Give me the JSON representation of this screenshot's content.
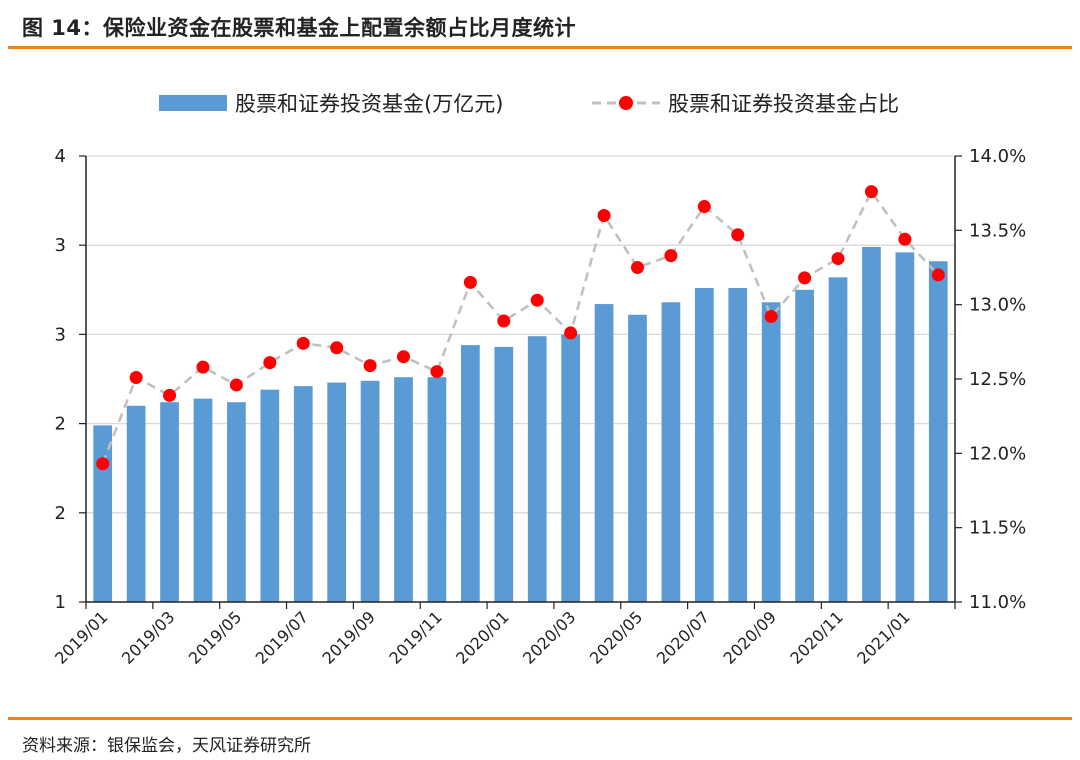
{
  "header": {
    "title": "图 14：保险业资金在股票和基金上配置余额占比月度统计"
  },
  "footer": {
    "source": "资料来源：银保监会，天风证券研究所"
  },
  "colors": {
    "accent_rule": "#F0821E",
    "bar": "#5B9BD5",
    "marker": "#FF0000",
    "line": "#BFBFBF",
    "grid": "#D9D9D9"
  },
  "chart_data": {
    "type": "bar",
    "categories": [
      "2019/01",
      "2019/02",
      "2019/03",
      "2019/04",
      "2019/05",
      "2019/06",
      "2019/07",
      "2019/08",
      "2019/09",
      "2019/10",
      "2019/11",
      "2019/12",
      "2020/01",
      "2020/02",
      "2020/03",
      "2020/04",
      "2020/05",
      "2020/06",
      "2020/07",
      "2020/08",
      "2020/09",
      "2020/10",
      "2020/11",
      "2020/12",
      "2021/01",
      "2021/02"
    ],
    "x_tick_labels": [
      "2019/01",
      "2019/03",
      "2019/05",
      "2019/07",
      "2019/09",
      "2019/11",
      "2020/01",
      "2020/03",
      "2020/05",
      "2020/07",
      "2020/09",
      "2020/11",
      "2021/01"
    ],
    "y_left_ticks": [
      {
        "value": 1.0,
        "label": "1"
      },
      {
        "value": 1.5,
        "label": "2"
      },
      {
        "value": 2.0,
        "label": "2"
      },
      {
        "value": 2.5,
        "label": "3"
      },
      {
        "value": 3.0,
        "label": "3"
      },
      {
        "value": 3.5,
        "label": "4"
      }
    ],
    "y_right_ticks": [
      "11.0%",
      "11.5%",
      "12.0%",
      "12.5%",
      "13.0%",
      "13.5%",
      "14.0%"
    ],
    "ylim_left": [
      1.0,
      3.5
    ],
    "ylim_right": [
      11.0,
      14.0
    ],
    "series": [
      {
        "name": "股票和证券投资基金(万亿元)",
        "kind": "bar",
        "axis": "left",
        "values": [
          1.99,
          2.1,
          2.12,
          2.14,
          2.12,
          2.19,
          2.21,
          2.23,
          2.24,
          2.26,
          2.26,
          2.44,
          2.43,
          2.49,
          2.5,
          2.67,
          2.61,
          2.68,
          2.76,
          2.76,
          2.68,
          2.75,
          2.82,
          2.99,
          2.96,
          2.91
        ]
      },
      {
        "name": "股票和证券投资基金占比",
        "kind": "line",
        "axis": "right",
        "values": [
          11.93,
          12.51,
          12.39,
          12.58,
          12.46,
          12.61,
          12.74,
          12.71,
          12.59,
          12.65,
          12.55,
          13.15,
          12.89,
          13.03,
          12.81,
          13.6,
          13.25,
          13.33,
          13.66,
          13.47,
          12.92,
          13.18,
          13.31,
          13.76,
          13.44,
          13.2
        ]
      }
    ]
  }
}
